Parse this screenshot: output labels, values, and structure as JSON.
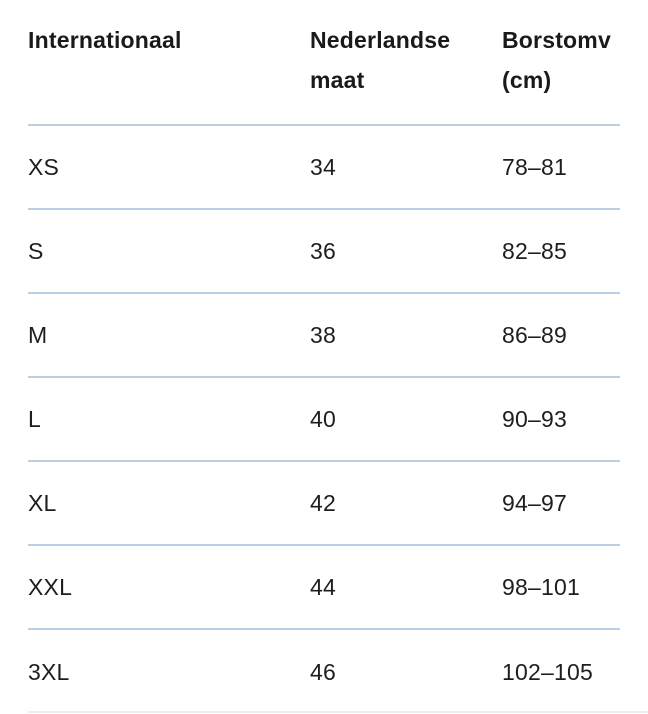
{
  "colors": {
    "background": "#ffffff",
    "divider": "#b9cfe6",
    "bottom_cut_line": "#ededed",
    "header_text": "#1a1a1a",
    "body_text": "#1e1e1e"
  },
  "size_table": {
    "columns": [
      {
        "id": "international",
        "label": "Internationaal"
      },
      {
        "id": "dutch_size",
        "label": "Nederlandse maat"
      },
      {
        "id": "chest_cm",
        "label": "Borstomv (cm)"
      }
    ],
    "rows": [
      {
        "international": "XS",
        "dutch_size": "34",
        "chest_cm": "78–81"
      },
      {
        "international": "S",
        "dutch_size": "36",
        "chest_cm": "82–85"
      },
      {
        "international": "M",
        "dutch_size": "38",
        "chest_cm": "86–89"
      },
      {
        "international": "L",
        "dutch_size": "40",
        "chest_cm": "90–93"
      },
      {
        "international": "XL",
        "dutch_size": "42",
        "chest_cm": "94–97"
      },
      {
        "international": "XXL",
        "dutch_size": "44",
        "chest_cm": "98–101"
      },
      {
        "international": "3XL",
        "dutch_size": "46",
        "chest_cm": "102–105"
      }
    ]
  }
}
